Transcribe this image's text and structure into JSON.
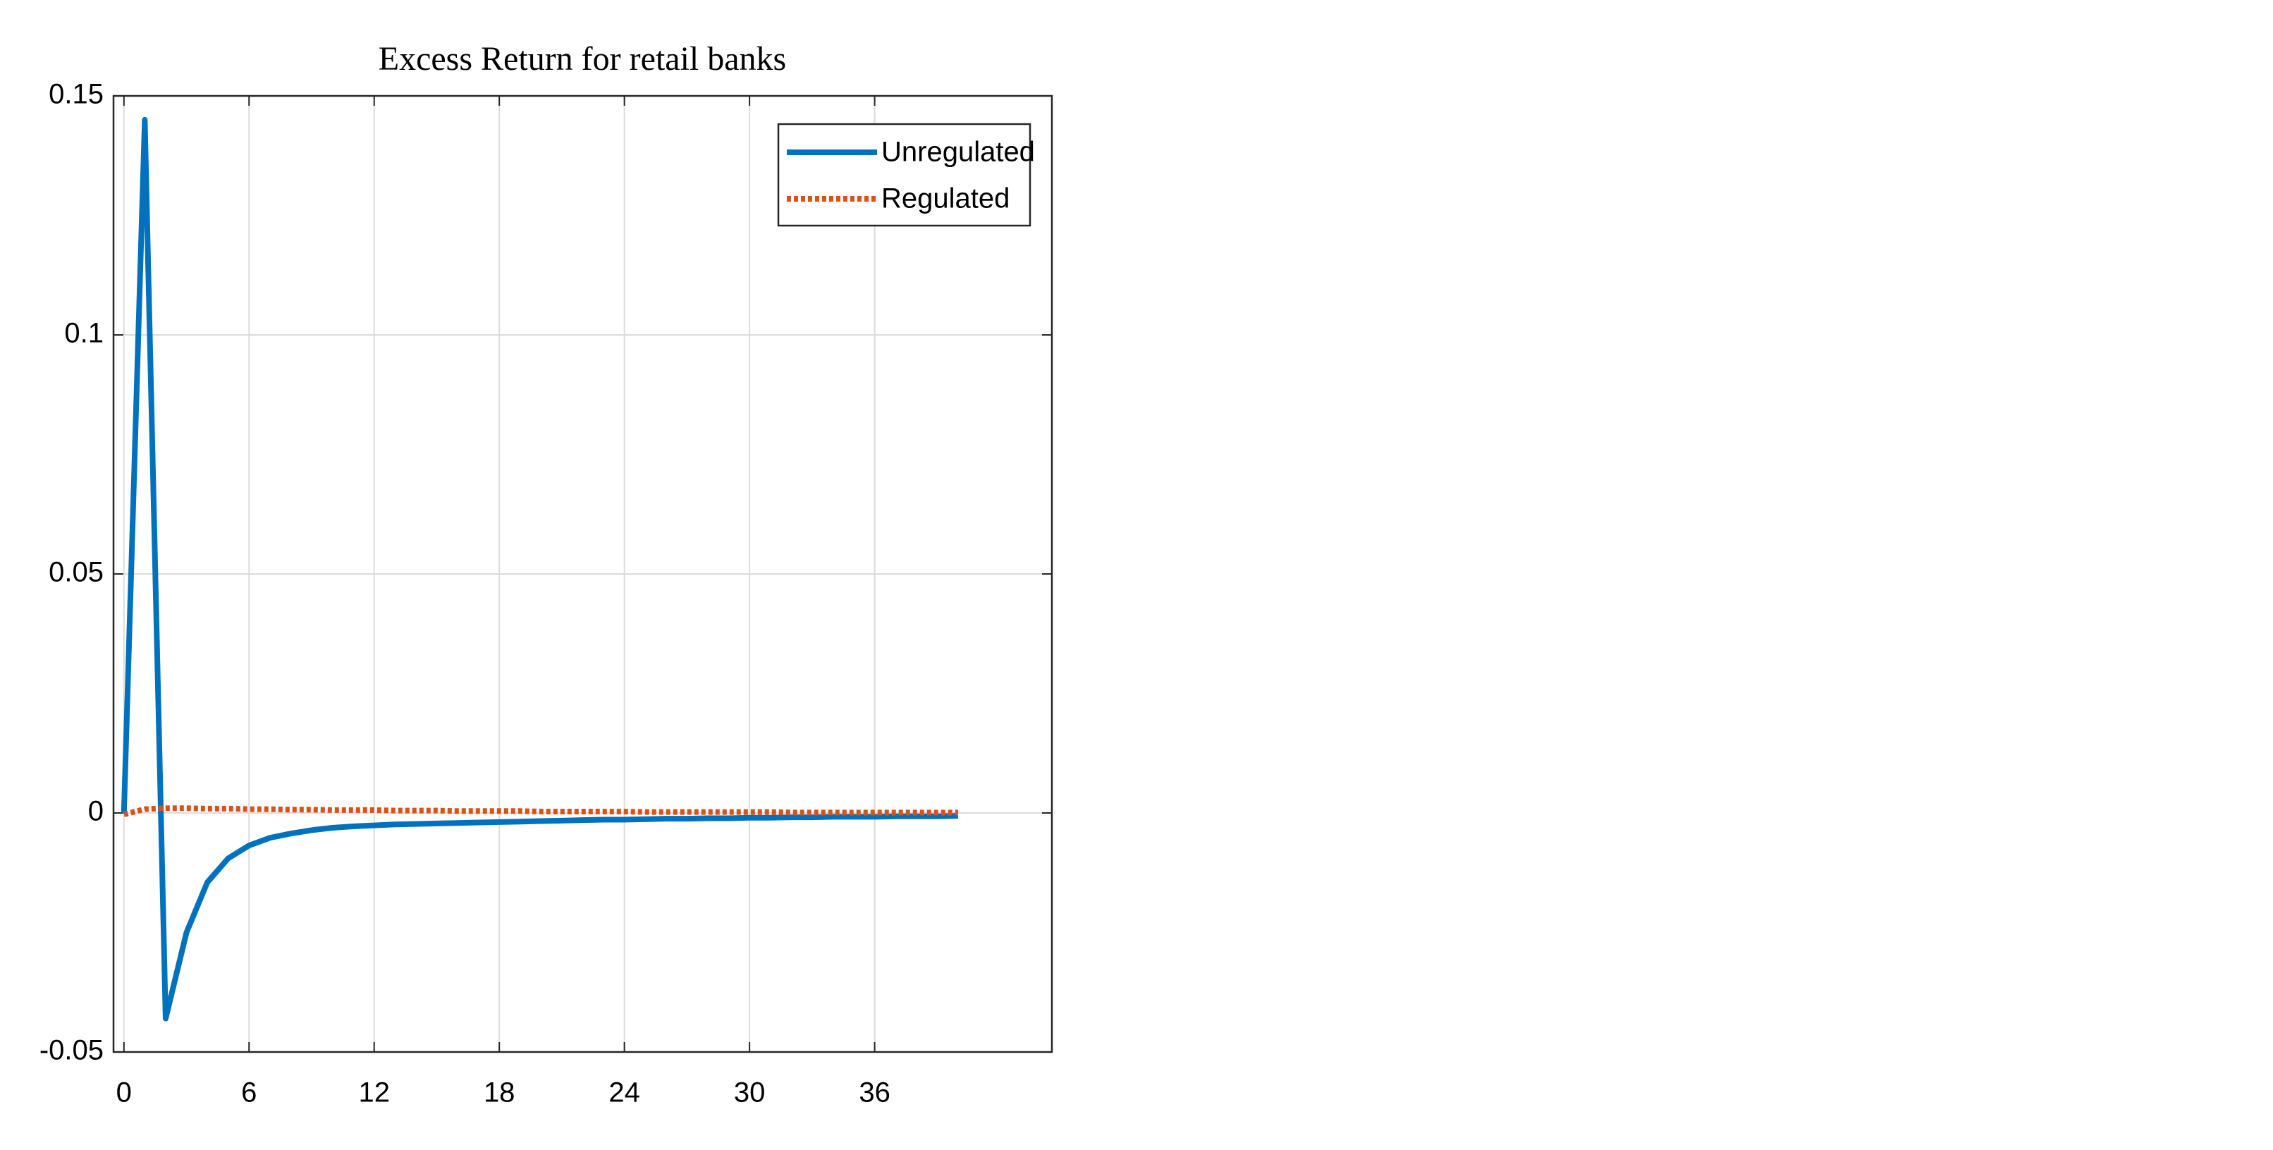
{
  "chart_data": {
    "type": "line",
    "title": "Excess Return for retail banks",
    "x": [
      0,
      1,
      2,
      3,
      4,
      5,
      6,
      7,
      8,
      9,
      10,
      11,
      12,
      13,
      14,
      15,
      16,
      17,
      18,
      19,
      20,
      21,
      22,
      23,
      24,
      25,
      26,
      27,
      28,
      29,
      30,
      31,
      32,
      33,
      34,
      35,
      36,
      37,
      38,
      39,
      40
    ],
    "series": [
      {
        "name": "Unregulated",
        "color": "#0072bd",
        "style": "solid",
        "values": [
          0,
          0.145,
          -0.043,
          -0.025,
          -0.0145,
          -0.0095,
          -0.0068,
          -0.0052,
          -0.0043,
          -0.0036,
          -0.0031,
          -0.0028,
          -0.0026,
          -0.0024,
          -0.0023,
          -0.0022,
          -0.0021,
          -0.002,
          -0.0019,
          -0.0018,
          -0.0017,
          -0.0016,
          -0.0015,
          -0.0014,
          -0.0014,
          -0.0013,
          -0.0012,
          -0.0012,
          -0.0011,
          -0.0011,
          -0.001,
          -0.001,
          -0.0009,
          -0.0009,
          -0.0008,
          -0.0008,
          -0.0008,
          -0.0007,
          -0.0007,
          -0.0007,
          -0.0006
        ]
      },
      {
        "name": "Regulated",
        "color": "#d95319",
        "style": "dotted",
        "values": [
          -0.0003,
          0.0008,
          0.001,
          0.001,
          0.0009,
          0.0009,
          0.0008,
          0.0008,
          0.0007,
          0.0007,
          0.0006,
          0.0006,
          0.0006,
          0.0005,
          0.0005,
          0.0005,
          0.0004,
          0.0004,
          0.0004,
          0.0004,
          0.0003,
          0.0003,
          0.0003,
          0.0003,
          0.0003,
          0.0002,
          0.0002,
          0.0002,
          0.0002,
          0.0002,
          0.0002,
          0.0002,
          0.0001,
          0.0001,
          0.0001,
          0.0001,
          0.0001,
          0.0001,
          0.0001,
          0.0001,
          0.0001
        ]
      }
    ],
    "xlim": [
      -0.5,
      44.5
    ],
    "xticks": [
      0,
      6,
      12,
      18,
      24,
      30,
      36
    ],
    "ylim": [
      -0.05,
      0.15
    ],
    "yticks": [
      -0.05,
      0,
      0.05,
      0.1,
      0.15
    ],
    "grid": true,
    "legend": "northeast"
  }
}
